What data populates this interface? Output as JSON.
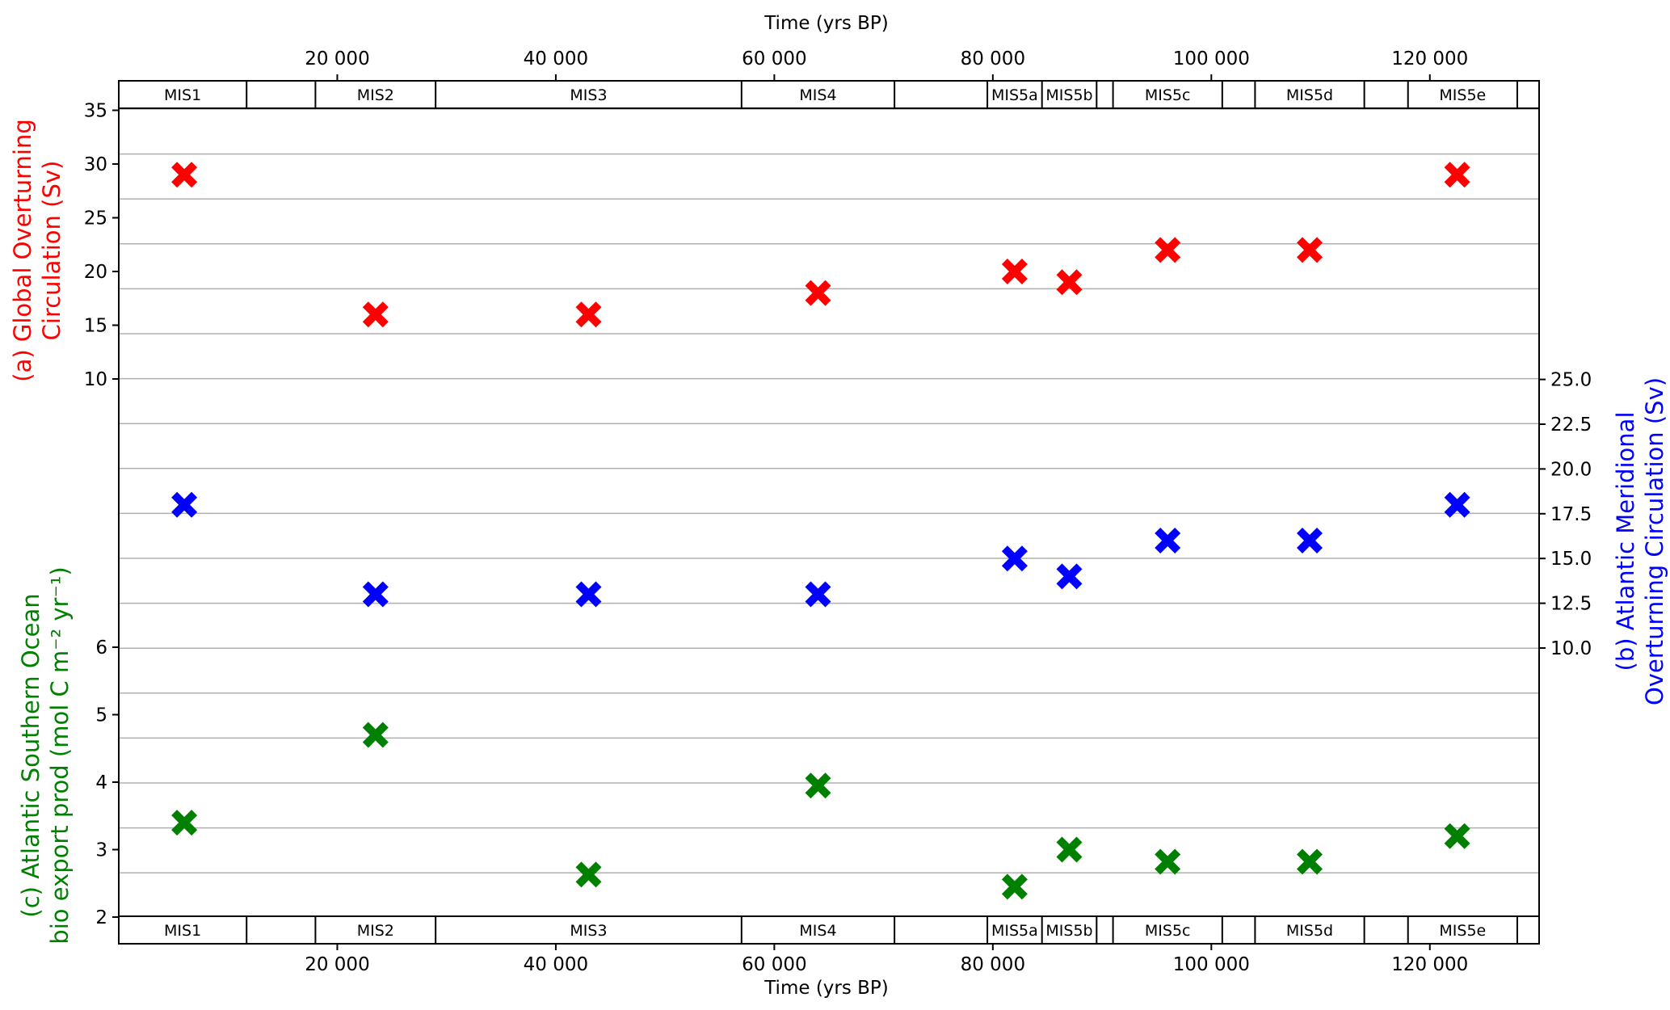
{
  "chart_data": {
    "type": "scatter",
    "x_label_top": "Time (yrs BP)",
    "x_label_bottom": "Time (yrs BP)",
    "xlim": [
      0,
      130000
    ],
    "x_ticks": [
      20000,
      40000,
      60000,
      80000,
      100000,
      120000
    ],
    "x_tick_labels": [
      "20 000",
      "40 000",
      "60 000",
      "80 000",
      "100 000",
      "120 000"
    ],
    "mis_stages": [
      {
        "label": "MIS1",
        "start": 0,
        "end": 11700
      },
      {
        "label": "",
        "start": 11700,
        "end": 18000
      },
      {
        "label": "MIS2",
        "start": 18000,
        "end": 29000
      },
      {
        "label": "MIS3",
        "start": 29000,
        "end": 57000
      },
      {
        "label": "MIS4",
        "start": 57000,
        "end": 71000
      },
      {
        "label": "",
        "start": 71000,
        "end": 79500
      },
      {
        "label": "MIS5a",
        "start": 79500,
        "end": 84500
      },
      {
        "label": "MIS5b",
        "start": 84500,
        "end": 89500
      },
      {
        "label": "",
        "start": 89500,
        "end": 91000
      },
      {
        "label": "MIS5c",
        "start": 91000,
        "end": 101000
      },
      {
        "label": "",
        "start": 101000,
        "end": 104000
      },
      {
        "label": "MIS5d",
        "start": 104000,
        "end": 114000
      },
      {
        "label": "",
        "start": 114000,
        "end": 118000
      },
      {
        "label": "MIS5e",
        "start": 118000,
        "end": 128000
      },
      {
        "label": "",
        "start": 128000,
        "end": 130000
      }
    ],
    "x": [
      6000,
      23500,
      43000,
      64000,
      82000,
      87000,
      96000,
      109000,
      122500
    ],
    "series": [
      {
        "label": "(a) Global Overturning\nCirculation (Sv)",
        "axis": "left-top",
        "color": "#ff0000",
        "values": [
          29,
          16,
          16,
          18,
          20,
          19,
          22,
          22,
          29
        ],
        "ticks": [
          10,
          15,
          20,
          25,
          30,
          35
        ],
        "tick_labels": [
          "10",
          "15",
          "20",
          "25",
          "30",
          "35"
        ]
      },
      {
        "label": "(b) Atlantic Meridional\nOverturning Circulation (Sv)",
        "axis": "right",
        "color": "#0000ff",
        "values": [
          18,
          13,
          13,
          13,
          15,
          14,
          16,
          16,
          18
        ],
        "ticks": [
          10,
          12.5,
          15,
          17.5,
          20,
          22.5,
          25
        ],
        "tick_labels": [
          "10.0",
          "12.5",
          "15.0",
          "17.5",
          "20.0",
          "22.5",
          "25.0"
        ]
      },
      {
        "label": "(c) Atlantic Southern Ocean\nbio export prod (mol C m⁻² yr⁻¹)",
        "axis": "left-bottom",
        "color": "#008000",
        "values": [
          3.4,
          4.7,
          2.63,
          3.95,
          2.45,
          3.0,
          2.82,
          2.82,
          3.2
        ],
        "ticks": [
          2,
          3,
          4,
          5,
          6
        ],
        "tick_labels": [
          "2",
          "3",
          "4",
          "5",
          "6"
        ]
      }
    ],
    "grid": "horizontal",
    "marker": "X"
  }
}
